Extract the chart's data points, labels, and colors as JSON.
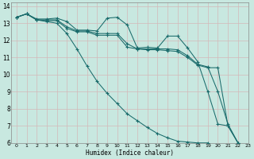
{
  "xlabel": "Humidex (Indice chaleur)",
  "xlim": [
    -0.5,
    23
  ],
  "ylim": [
    6,
    14.2
  ],
  "yticks": [
    6,
    7,
    8,
    9,
    10,
    11,
    12,
    13,
    14
  ],
  "xticks": [
    0,
    1,
    2,
    3,
    4,
    5,
    6,
    7,
    8,
    9,
    10,
    11,
    12,
    13,
    14,
    15,
    16,
    17,
    18,
    19,
    20,
    21,
    22,
    23
  ],
  "bg_color": "#c8e8e0",
  "grid_color": "#add4cc",
  "line_color": "#1a6b6b",
  "series": [
    {
      "x": [
        0,
        1,
        2,
        3,
        4,
        5,
        6,
        7,
        8,
        9,
        10,
        11,
        12,
        13,
        14,
        15,
        16,
        17,
        18,
        19,
        20,
        21,
        22
      ],
      "y": [
        13.35,
        13.55,
        13.25,
        13.25,
        13.3,
        13.1,
        12.6,
        12.6,
        12.55,
        13.3,
        13.35,
        12.9,
        11.55,
        11.6,
        11.55,
        12.25,
        12.25,
        11.55,
        10.75,
        9.0,
        7.1,
        7.0,
        6.0
      ]
    },
    {
      "x": [
        0,
        1,
        2,
        3,
        4,
        5,
        6,
        7,
        8,
        9,
        10,
        11,
        12,
        13,
        14,
        15,
        16,
        17,
        18,
        19,
        20,
        21,
        22
      ],
      "y": [
        13.35,
        13.55,
        13.2,
        13.2,
        13.2,
        12.8,
        12.55,
        12.55,
        12.4,
        12.4,
        12.4,
        11.8,
        11.5,
        11.5,
        11.5,
        11.5,
        11.45,
        11.1,
        10.6,
        10.45,
        9.0,
        7.1,
        6.0
      ]
    },
    {
      "x": [
        0,
        1,
        2,
        3,
        4,
        5,
        6,
        7,
        8,
        9,
        10,
        11,
        12,
        13,
        14,
        15,
        16,
        17,
        18,
        19,
        20,
        21,
        22
      ],
      "y": [
        13.35,
        13.55,
        13.2,
        13.15,
        13.15,
        12.7,
        12.5,
        12.5,
        12.3,
        12.3,
        12.3,
        11.6,
        11.5,
        11.45,
        11.45,
        11.4,
        11.35,
        11.0,
        10.55,
        10.4,
        10.4,
        7.0,
        6.0
      ]
    },
    {
      "x": [
        0,
        1,
        2,
        3,
        4,
        5,
        6,
        7,
        8,
        9,
        10,
        11,
        12,
        13,
        14,
        15,
        16,
        17,
        18,
        19
      ],
      "y": [
        13.35,
        13.55,
        13.2,
        13.1,
        13.0,
        12.4,
        11.5,
        10.5,
        9.6,
        8.9,
        8.3,
        7.7,
        7.3,
        6.9,
        6.55,
        6.3,
        6.1,
        6.05,
        6.0,
        6.0
      ]
    }
  ]
}
